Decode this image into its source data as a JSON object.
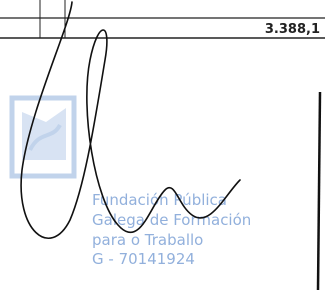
{
  "table": {
    "rows": [
      [
        "3.388,1"
      ]
    ]
  },
  "stamp": {
    "lines": [
      "Fundación Pública",
      "Galega de Formación",
      "para o Traballo",
      "G - 70141924"
    ]
  }
}
